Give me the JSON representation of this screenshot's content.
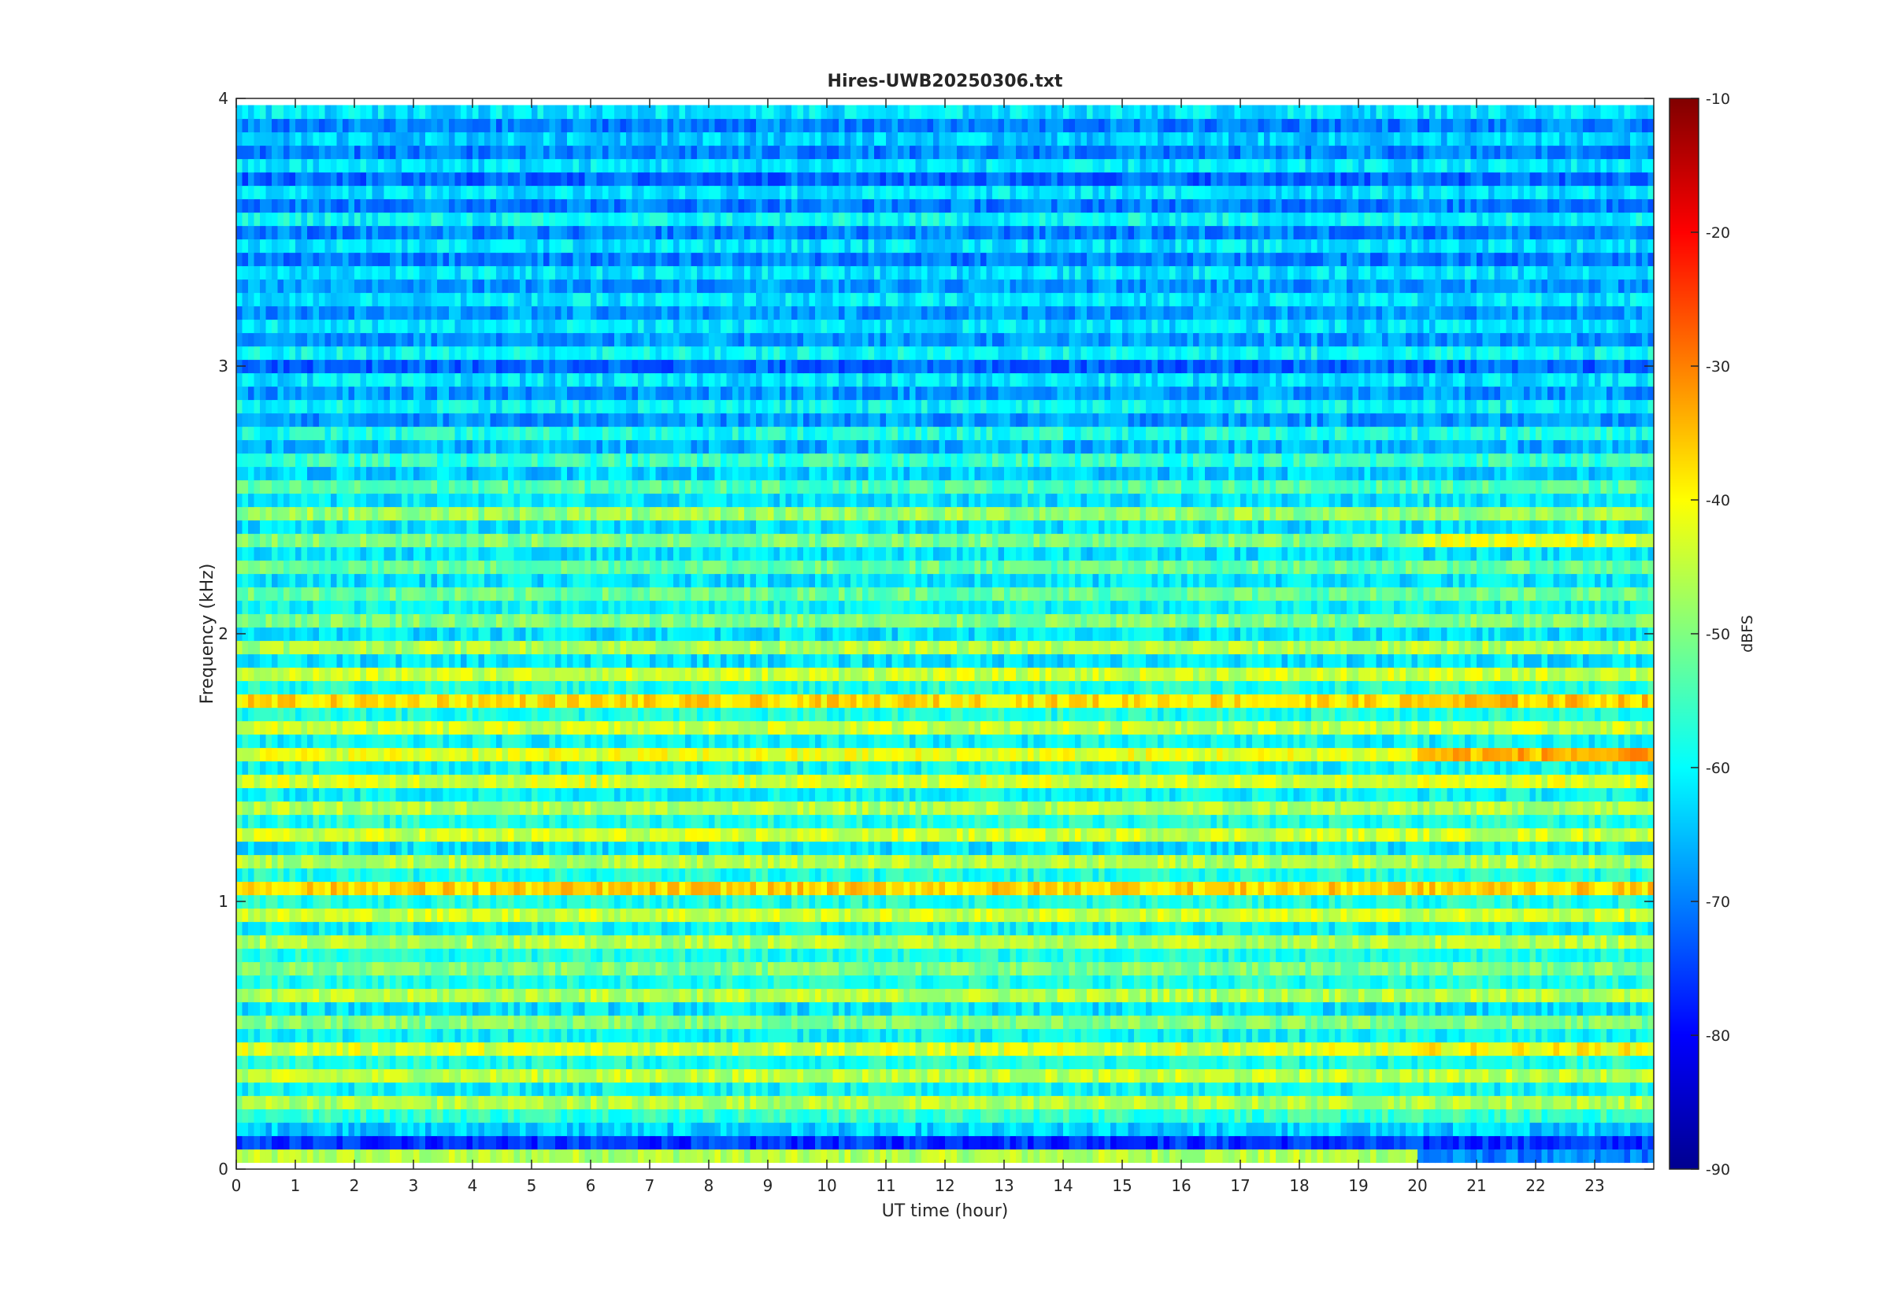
{
  "chart_data": {
    "type": "heatmap",
    "title": "Hires-UWB20250306.txt",
    "xlabel": "UT time (hour)",
    "ylabel": "Frequency (kHz)",
    "xlim": [
      0,
      24
    ],
    "ylim": [
      0,
      4
    ],
    "x_ticks": [
      "0",
      "1",
      "2",
      "3",
      "4",
      "5",
      "6",
      "7",
      "8",
      "9",
      "10",
      "11",
      "12",
      "13",
      "14",
      "15",
      "16",
      "17",
      "18",
      "19",
      "20",
      "21",
      "22",
      "23"
    ],
    "y_ticks": [
      "0",
      "1",
      "2",
      "3",
      "4"
    ],
    "colorbar": {
      "label": "dBFS",
      "range": [
        -90,
        -10
      ],
      "ticks": [
        "-90",
        "-80",
        "-70",
        "-60",
        "-50",
        "-40",
        "-30",
        "-20",
        "-10"
      ],
      "colormap": "jet"
    },
    "grid": false,
    "bands": [
      {
        "f": 0.05,
        "level": -46,
        "level_after_20h": -70
      },
      {
        "f": 0.1,
        "level": -76
      },
      {
        "f": 0.15,
        "level": -64
      },
      {
        "f": 0.2,
        "level": -56
      },
      {
        "f": 0.25,
        "level": -46
      },
      {
        "f": 0.3,
        "level": -60
      },
      {
        "f": 0.35,
        "level": -45
      },
      {
        "f": 0.4,
        "level": -58
      },
      {
        "f": 0.45,
        "level": -43,
        "level_after_20h": -40
      },
      {
        "f": 0.5,
        "level": -60
      },
      {
        "f": 0.55,
        "level": -50
      },
      {
        "f": 0.6,
        "level": -62
      },
      {
        "f": 0.65,
        "level": -46
      },
      {
        "f": 0.7,
        "level": -58
      },
      {
        "f": 0.75,
        "level": -50
      },
      {
        "f": 0.8,
        "level": -58
      },
      {
        "f": 0.85,
        "level": -46
      },
      {
        "f": 0.9,
        "level": -60
      },
      {
        "f": 0.95,
        "level": -44
      },
      {
        "f": 1.0,
        "level": -58
      },
      {
        "f": 1.05,
        "level": -37
      },
      {
        "f": 1.1,
        "level": -58
      },
      {
        "f": 1.15,
        "level": -46
      },
      {
        "f": 1.2,
        "level": -62
      },
      {
        "f": 1.25,
        "level": -44
      },
      {
        "f": 1.3,
        "level": -58
      },
      {
        "f": 1.35,
        "level": -46
      },
      {
        "f": 1.4,
        "level": -60
      },
      {
        "f": 1.45,
        "level": -43
      },
      {
        "f": 1.5,
        "level": -60
      },
      {
        "f": 1.55,
        "level": -42,
        "level_after_20h": -34
      },
      {
        "f": 1.6,
        "level": -60
      },
      {
        "f": 1.65,
        "level": -44
      },
      {
        "f": 1.7,
        "level": -58
      },
      {
        "f": 1.75,
        "level": -38,
        "level_after_20h": -36
      },
      {
        "f": 1.8,
        "level": -58
      },
      {
        "f": 1.85,
        "level": -44
      },
      {
        "f": 1.9,
        "level": -62
      },
      {
        "f": 1.95,
        "level": -46
      },
      {
        "f": 2.0,
        "level": -62
      },
      {
        "f": 2.05,
        "level": -50
      },
      {
        "f": 2.1,
        "level": -60
      },
      {
        "f": 2.15,
        "level": -52
      },
      {
        "f": 2.2,
        "level": -62
      },
      {
        "f": 2.25,
        "level": -52
      },
      {
        "f": 2.3,
        "level": -62
      },
      {
        "f": 2.35,
        "level": -50,
        "level_after_20h": -42
      },
      {
        "f": 2.4,
        "level": -62
      },
      {
        "f": 2.45,
        "level": -48
      },
      {
        "f": 2.5,
        "level": -62
      },
      {
        "f": 2.55,
        "level": -54
      },
      {
        "f": 2.6,
        "level": -64
      },
      {
        "f": 2.65,
        "level": -56
      },
      {
        "f": 2.7,
        "level": -66
      },
      {
        "f": 2.75,
        "level": -58
      },
      {
        "f": 2.8,
        "level": -68
      },
      {
        "f": 2.85,
        "level": -60
      },
      {
        "f": 2.9,
        "level": -68
      },
      {
        "f": 2.95,
        "level": -62
      },
      {
        "f": 3.0,
        "level": -72
      },
      {
        "f": 3.05,
        "level": -60
      },
      {
        "f": 3.1,
        "level": -68
      },
      {
        "f": 3.15,
        "level": -62
      },
      {
        "f": 3.2,
        "level": -68
      },
      {
        "f": 3.25,
        "level": -62
      },
      {
        "f": 3.3,
        "level": -68
      },
      {
        "f": 3.35,
        "level": -62
      },
      {
        "f": 3.4,
        "level": -70
      },
      {
        "f": 3.45,
        "level": -62
      },
      {
        "f": 3.5,
        "level": -70
      },
      {
        "f": 3.55,
        "level": -60
      },
      {
        "f": 3.6,
        "level": -70
      },
      {
        "f": 3.65,
        "level": -62
      },
      {
        "f": 3.7,
        "level": -72
      },
      {
        "f": 3.75,
        "level": -62
      },
      {
        "f": 3.8,
        "level": -70
      },
      {
        "f": 3.85,
        "level": -64
      },
      {
        "f": 3.9,
        "level": -70
      },
      {
        "f": 3.95,
        "level": -62
      }
    ]
  }
}
